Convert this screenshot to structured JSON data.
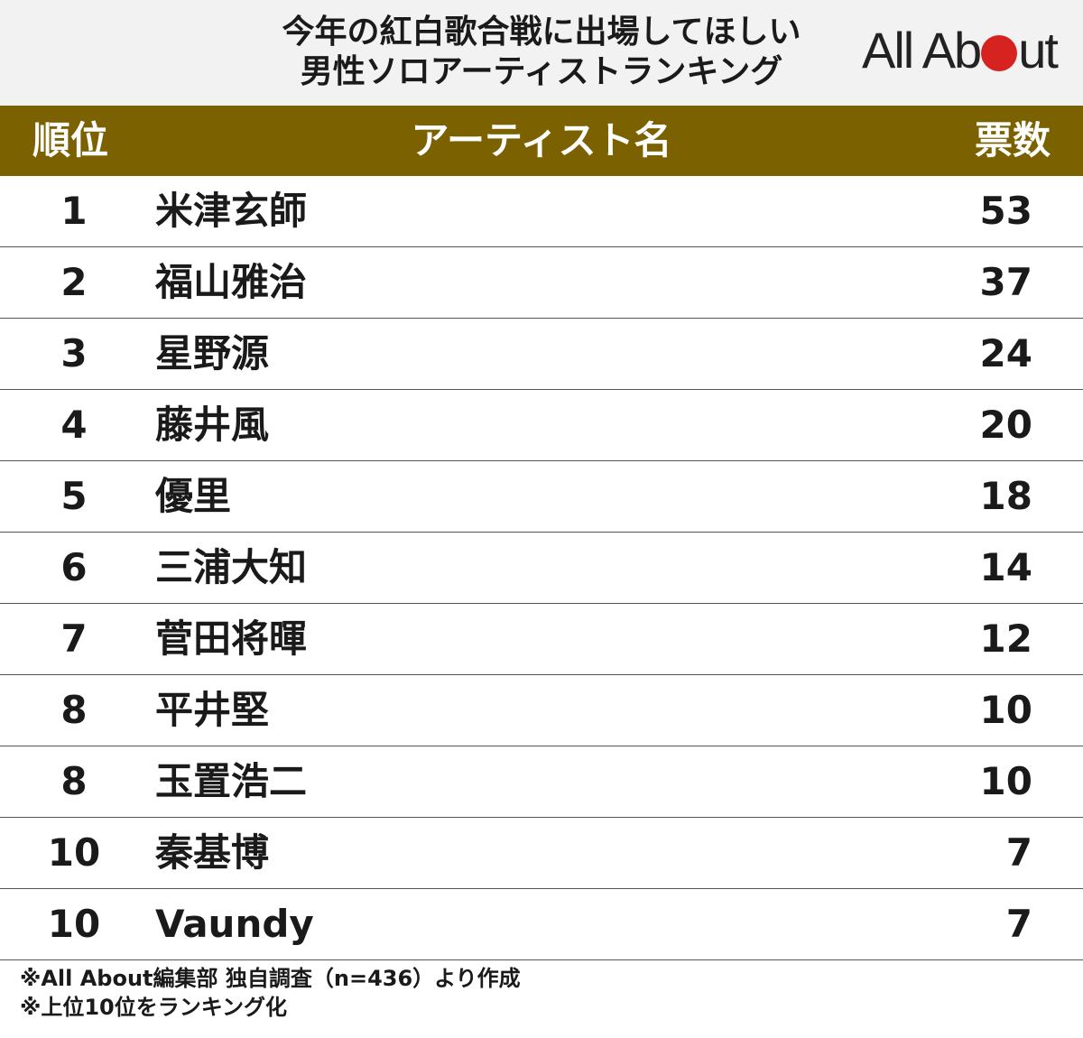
{
  "title": {
    "line1": "今年の紅白歌合戦に出場してほしい",
    "line2": "男性ソロアーティストランキング"
  },
  "logo": {
    "text_before": "All Ab",
    "text_after": "ut",
    "dot_color": "#d7231f"
  },
  "colors": {
    "header_band": "#7b6100",
    "title_band": "#f2f2f2"
  },
  "columns": {
    "rank": "順位",
    "name": "アーティスト名",
    "votes": "票数"
  },
  "rows": [
    {
      "rank": "1",
      "name": "米津玄師",
      "votes": "53"
    },
    {
      "rank": "2",
      "name": "福山雅治",
      "votes": "37"
    },
    {
      "rank": "3",
      "name": "星野源",
      "votes": "24"
    },
    {
      "rank": "4",
      "name": "藤井風",
      "votes": "20"
    },
    {
      "rank": "5",
      "name": "優里",
      "votes": "18"
    },
    {
      "rank": "6",
      "name": "三浦大知",
      "votes": "14"
    },
    {
      "rank": "7",
      "name": "菅田将暉",
      "votes": "12"
    },
    {
      "rank": "8",
      "name": "平井堅",
      "votes": "10"
    },
    {
      "rank": "8",
      "name": "玉置浩二",
      "votes": "10"
    },
    {
      "rank": "10",
      "name": "秦基博",
      "votes": "7"
    },
    {
      "rank": "10",
      "name": "Vaundy",
      "votes": "7"
    }
  ],
  "notes": [
    "※All About編集部 独自調査（n=436）より作成",
    "※上位10位をランキング化"
  ]
}
